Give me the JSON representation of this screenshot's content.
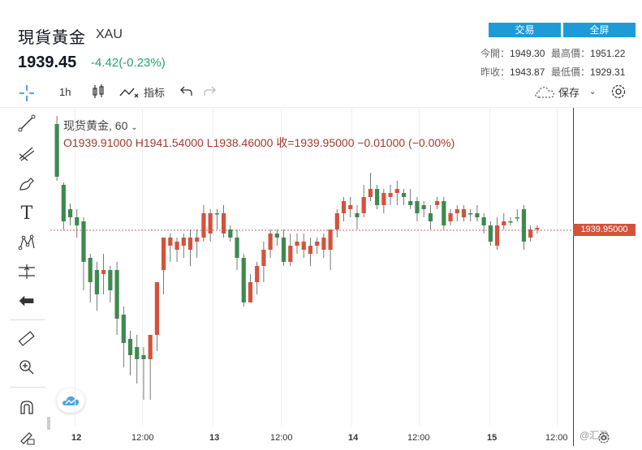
{
  "header": {
    "title": "現貨黃金",
    "symbol": "XAU",
    "price": "1939.45",
    "change": "-4.42(-0.23%)",
    "trade_button": "交易",
    "fullscreen_button": "全屏",
    "stats": {
      "open_label": "今開：",
      "open_value": "1949.30",
      "high_label": "最高價：",
      "high_value": "1951.22",
      "prev_close_label": "昨收：",
      "prev_close_value": "1943.87",
      "low_label": "最低價：",
      "low_value": "1929.31"
    }
  },
  "toolbar": {
    "interval": "1h",
    "indicators_label": "指标",
    "save_label": "保存"
  },
  "chart": {
    "legend": "现货黄金, 60",
    "ohlc_text": "O1939.91000   H1941.54000   L1938.46000   收=1939.95000   −0.01000 (−0.00%)",
    "last_price_tag": "1939.95000",
    "x_labels": [
      "12",
      "12:00",
      "13",
      "12:00",
      "14",
      "12:00",
      "15",
      "12:00"
    ],
    "colors": {
      "up": "#d4523c",
      "down": "#3d8a4f",
      "last_line": "#c0392b"
    }
  },
  "watermark": "@汇盈"
}
